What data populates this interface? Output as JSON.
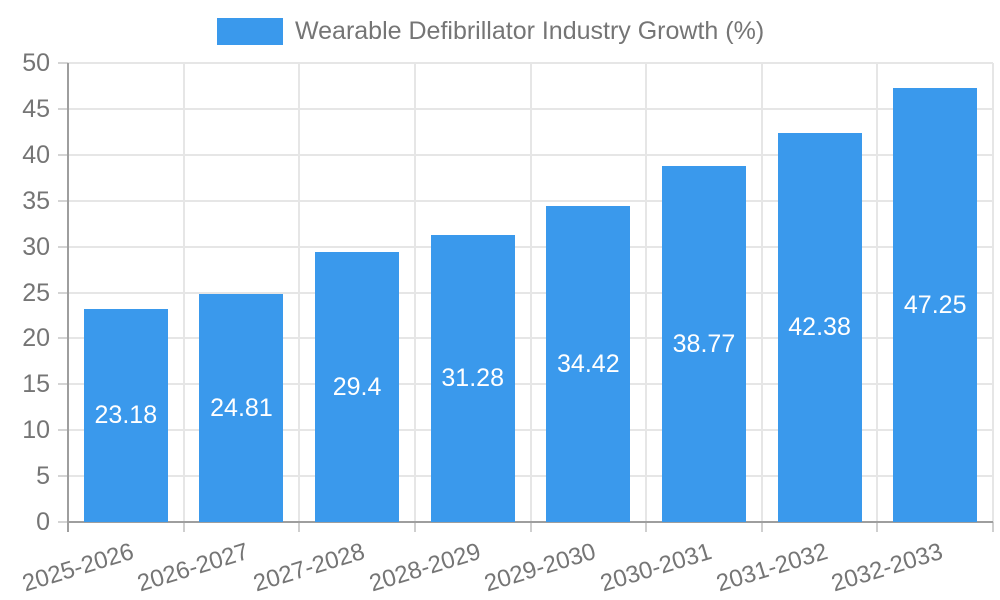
{
  "legend": {
    "label": "Wearable Defibrillator Industry Growth (%)"
  },
  "chart_data": {
    "type": "bar",
    "title": "Wearable Defibrillator Industry Growth (%)",
    "categories": [
      "2025-2026",
      "2026-2027",
      "2027-2028",
      "2028-2029",
      "2029-2030",
      "2030-2031",
      "2031-2032",
      "2032-2033"
    ],
    "series": [
      {
        "name": "Wearable Defibrillator Industry Growth (%)",
        "values": [
          23.18,
          24.81,
          29.4,
          31.28,
          34.42,
          38.77,
          42.38,
          47.25
        ]
      }
    ],
    "value_labels": [
      "23.18",
      "24.81",
      "29.4",
      "31.28",
      "34.42",
      "38.77",
      "42.38",
      "47.25"
    ],
    "xlabel": "",
    "ylabel": "",
    "ylim": [
      0,
      50
    ],
    "ytick_step": 5,
    "ytick_labels": [
      "0",
      "5",
      "10",
      "15",
      "20",
      "25",
      "30",
      "35",
      "40",
      "45",
      "50"
    ],
    "grid": true,
    "legend_position": "top",
    "colors": {
      "bar": "#3a99ec",
      "value_label": "#ffffff",
      "axis_text": "#757575",
      "gridline": "#e6e6e6",
      "axis_line": "#9e9e9e"
    }
  }
}
